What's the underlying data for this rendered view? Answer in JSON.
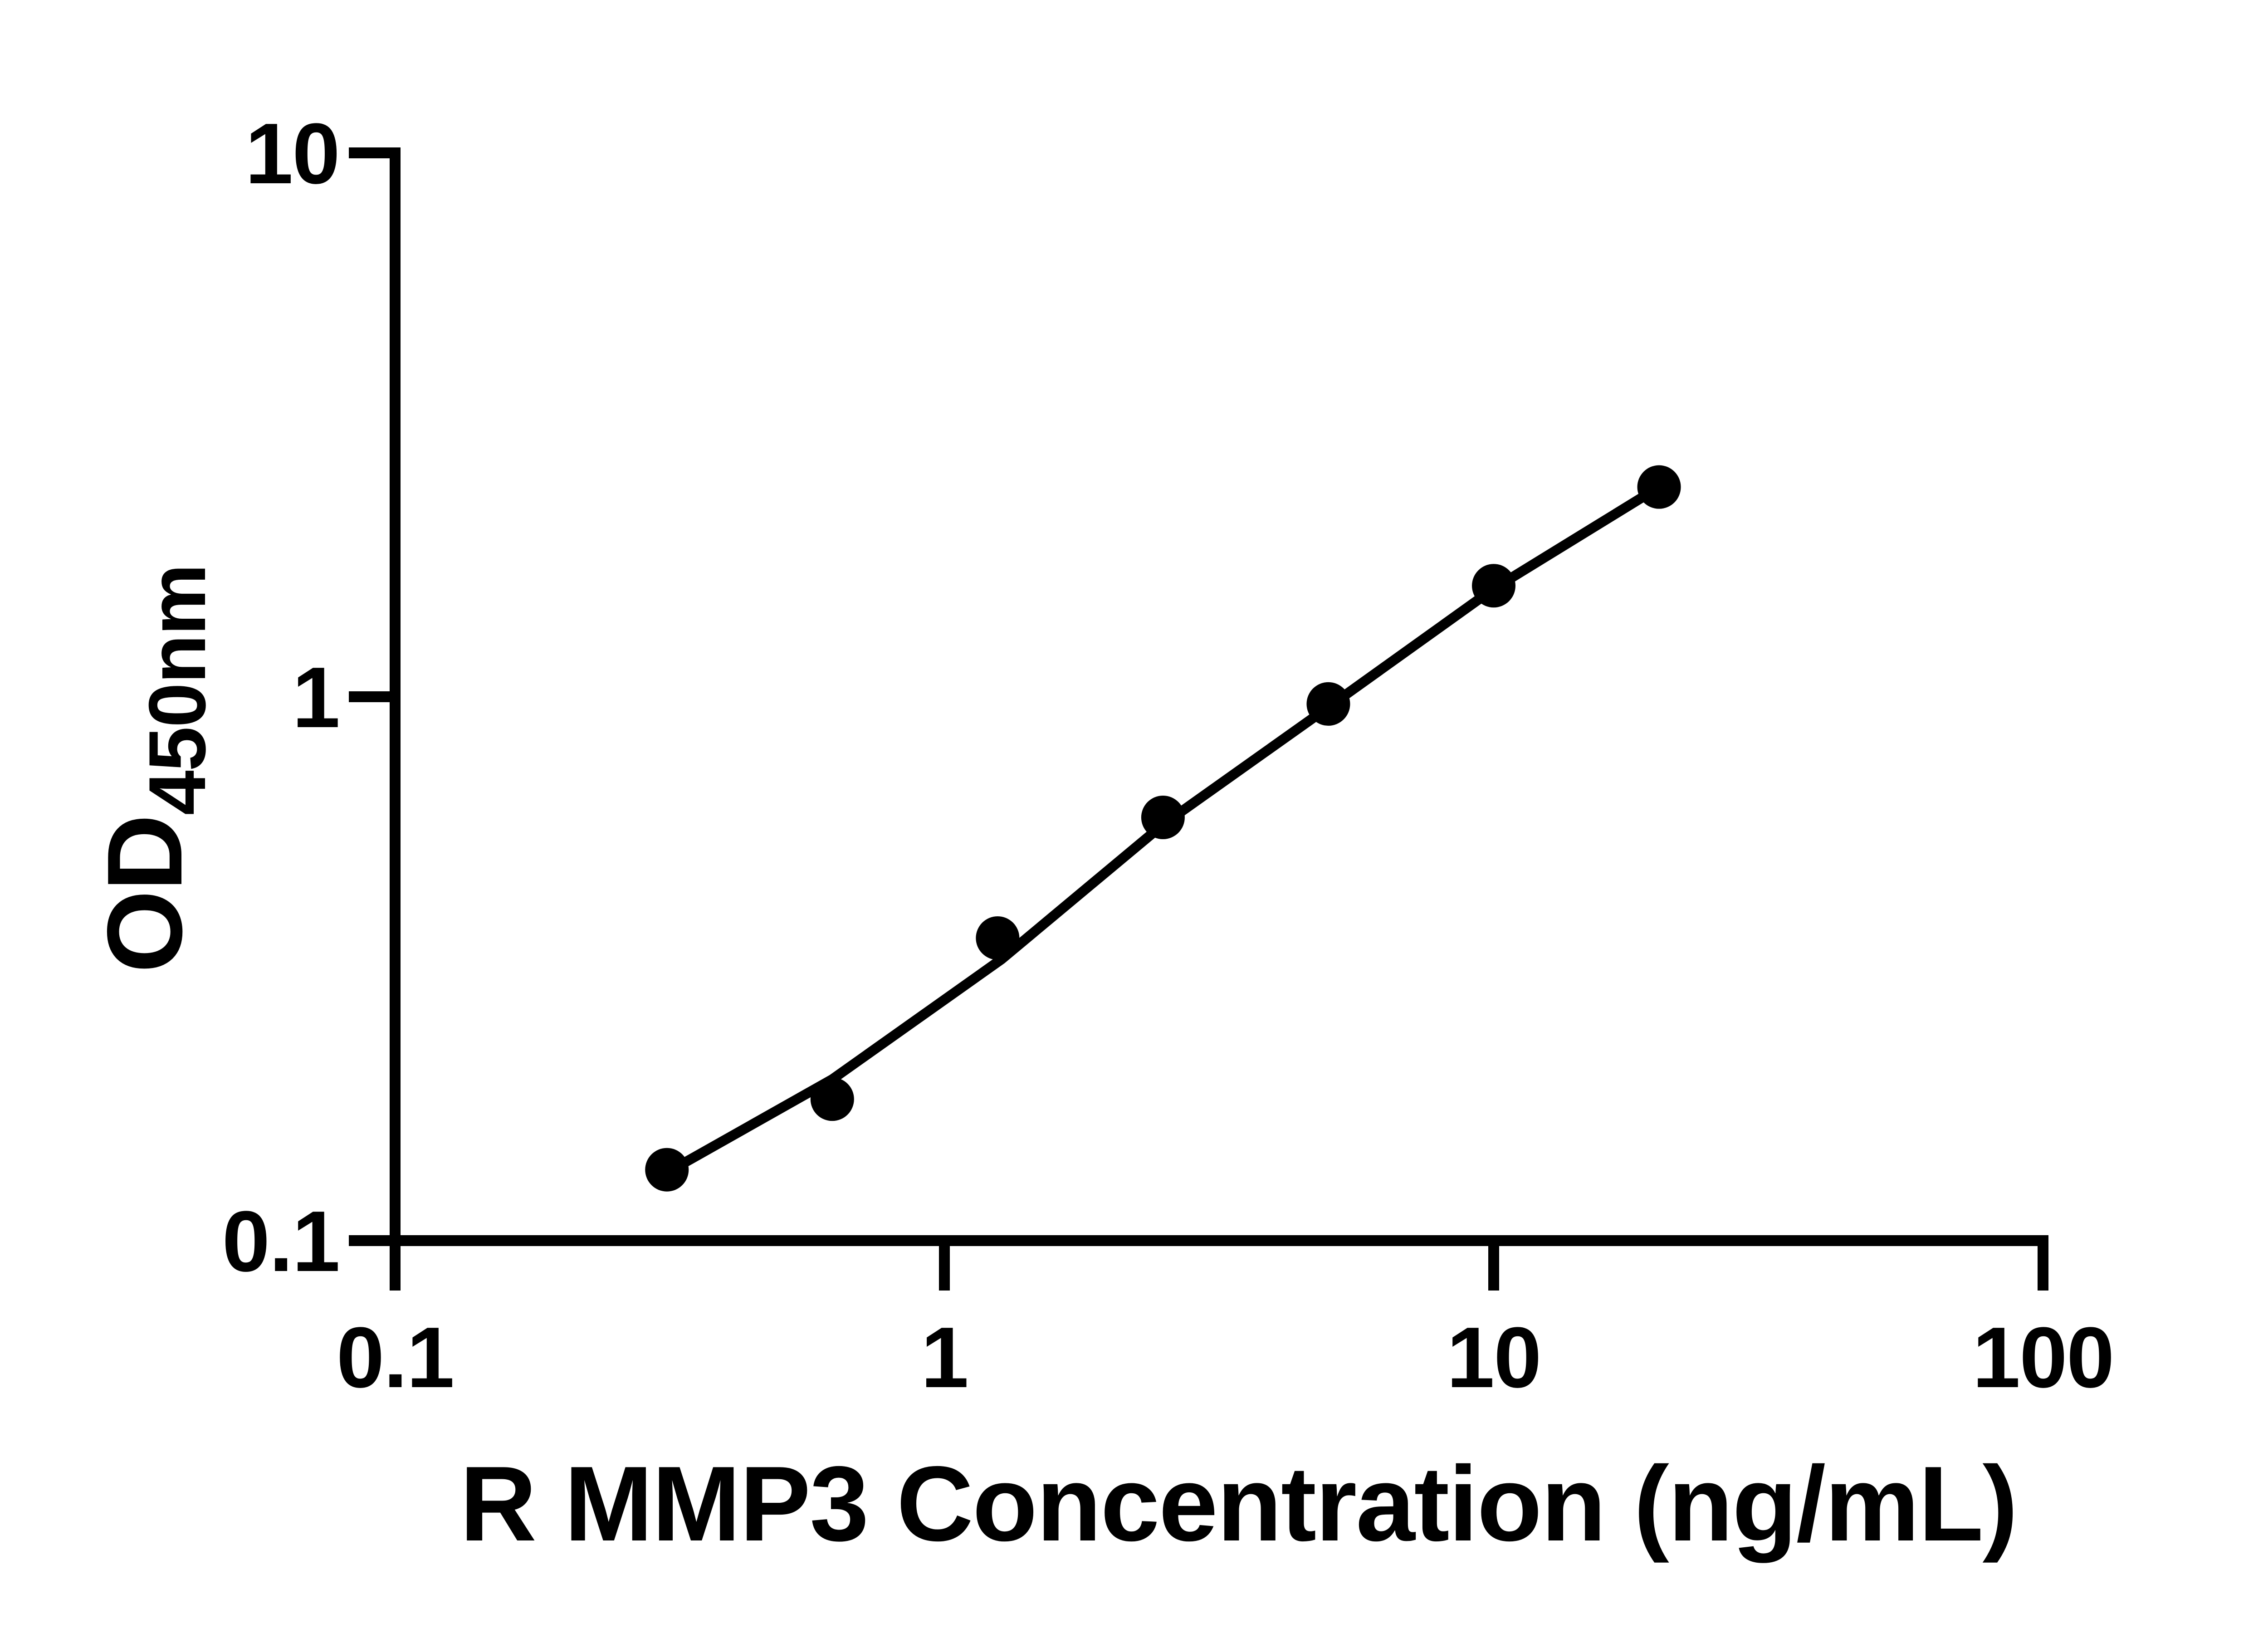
{
  "chart_data": {
    "type": "scatter",
    "title": "",
    "xlabel": "R MMP3 Concentration (ng/mL)",
    "ylabel_main": "OD",
    "ylabel_sub": "450nm",
    "x_scale": "log",
    "y_scale": "log",
    "xlim": [
      0.1,
      100
    ],
    "ylim": [
      0.1,
      10
    ],
    "grid": false,
    "legend": "none",
    "x_ticks": [
      {
        "value": 0.1,
        "label": "0.1"
      },
      {
        "value": 1,
        "label": "1"
      },
      {
        "value": 10,
        "label": "10"
      },
      {
        "value": 100,
        "label": "100"
      }
    ],
    "y_ticks": [
      {
        "value": 0.1,
        "label": "0.1"
      },
      {
        "value": 1,
        "label": "1"
      },
      {
        "value": 10,
        "label": "10"
      }
    ],
    "points": [
      {
        "x": 0.3125,
        "od": 0.135
      },
      {
        "x": 0.625,
        "od": 0.182
      },
      {
        "x": 1.25,
        "od": 0.36
      },
      {
        "x": 2.5,
        "od": 0.6
      },
      {
        "x": 5,
        "od": 0.97
      },
      {
        "x": 10,
        "od": 1.6
      },
      {
        "x": 20,
        "od": 2.43
      }
    ],
    "fit_line": [
      {
        "x": 0.311,
        "od": 0.133
      },
      {
        "x": 0.625,
        "od": 0.198
      },
      {
        "x": 1.27,
        "od": 0.329
      },
      {
        "x": 2.5,
        "od": 0.582
      },
      {
        "x": 5.0,
        "od": 0.957
      },
      {
        "x": 10.0,
        "od": 1.58
      },
      {
        "x": 20.0,
        "od": 2.43
      }
    ],
    "colors": {
      "points": "#000000",
      "line": "#000000",
      "axis": "#000000",
      "text": "#000000",
      "background": "#ffffff"
    }
  }
}
